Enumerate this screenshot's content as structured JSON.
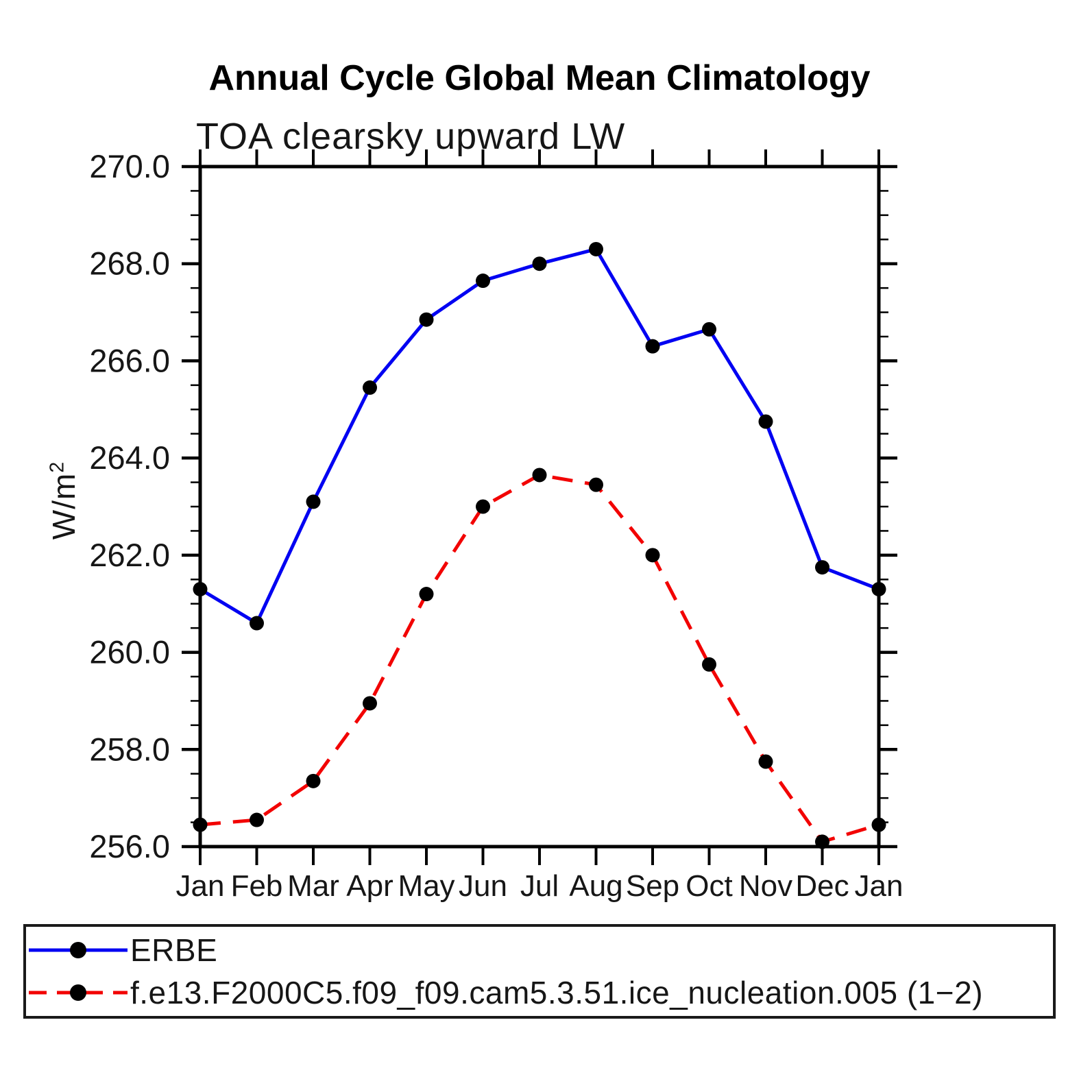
{
  "title": "Annual Cycle Global Mean Climatology",
  "subtitle": "TOA clearsky upward LW",
  "ylabel_base": "W/m",
  "ylabel_exp": "2",
  "colors": {
    "erbe_line": "#0202f2",
    "model_line": "#f20202",
    "marker": "#000000",
    "axis": "#000000",
    "text": "#161616",
    "background": "#ffffff"
  },
  "chart_data": {
    "type": "line",
    "title": "Annual Cycle Global Mean Climatology",
    "subtitle": "TOA clearsky upward LW",
    "ylabel": "W/m^2",
    "x_categories": [
      "Jan",
      "Feb",
      "Mar",
      "Apr",
      "May",
      "Jun",
      "Jul",
      "Aug",
      "Sep",
      "Oct",
      "Nov",
      "Dec",
      "Jan"
    ],
    "ylim": [
      256.0,
      270.0
    ],
    "y_major_ticks": [
      256.0,
      258.0,
      260.0,
      262.0,
      264.0,
      266.0,
      268.0,
      270.0
    ],
    "y_tick_labels": [
      "256.0",
      "258.0",
      "260.0",
      "262.0",
      "264.0",
      "266.0",
      "268.0",
      "270.0"
    ],
    "y_minor_step": 0.5,
    "grid": "off",
    "legend_position": "bottom-box",
    "series": [
      {
        "name": "ERBE",
        "style": "solid",
        "color": "#0202f2",
        "marker": "circle",
        "marker_color": "#000000",
        "values": [
          261.3,
          260.6,
          263.1,
          265.45,
          266.85,
          267.65,
          268.0,
          268.3,
          266.3,
          266.65,
          264.75,
          261.75,
          261.3
        ]
      },
      {
        "name": "f.e13.F2000C5.f09_f09.cam5.3.51.ice_nucleation.005 (1−2)",
        "style": "dashed",
        "color": "#f20202",
        "marker": "circle",
        "marker_color": "#000000",
        "values": [
          256.45,
          256.55,
          257.35,
          258.95,
          261.2,
          263.0,
          263.65,
          263.45,
          262.0,
          259.75,
          257.75,
          256.1,
          256.45
        ]
      }
    ]
  }
}
